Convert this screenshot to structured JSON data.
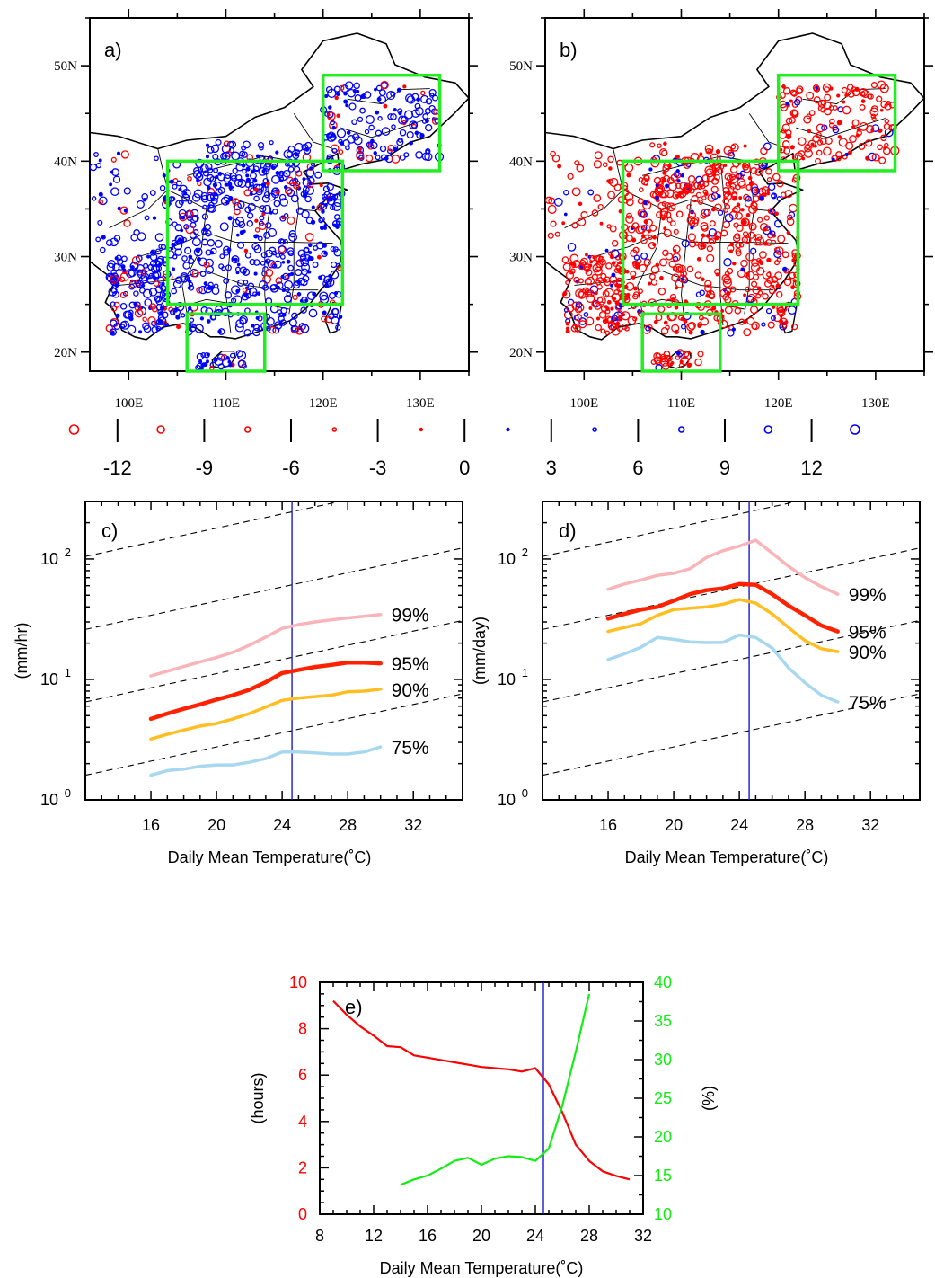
{
  "colors": {
    "negative": "#ff0000",
    "positive": "#0000ff",
    "box": "#22ee22",
    "p99": "#f8b4b8",
    "p95": "#ff2200",
    "p90": "#ffbe22",
    "p75": "#a8d8f0",
    "vline": "#1a1ad0",
    "hours_line": "#ff0000",
    "percent_line": "#11ee11"
  },
  "maps": [
    {
      "tag": "a)",
      "dominant": "positive",
      "lat_ticks": [
        "20N",
        "30N",
        "40N",
        "50N"
      ],
      "lon_ticks": [
        "100E",
        "110E",
        "120E",
        "130E"
      ],
      "lon_range": [
        96,
        135
      ],
      "lat_range": [
        18,
        55
      ]
    },
    {
      "tag": "b)",
      "dominant": "negative",
      "lat_ticks": [
        "20N",
        "30N",
        "40N",
        "50N"
      ],
      "lon_ticks": [
        "100E",
        "110E",
        "120E",
        "130E"
      ],
      "lon_range": [
        96,
        135
      ],
      "lat_range": [
        18,
        55
      ]
    }
  ],
  "colorbar": {
    "labels": [
      "-12",
      "-9",
      "-6",
      "-3",
      "0",
      "3",
      "6",
      "9",
      "12"
    ],
    "markers": [
      {
        "color": "negative",
        "size": 5
      },
      {
        "color": "negative",
        "size": 4
      },
      {
        "color": "negative",
        "size": 3
      },
      {
        "color": "negative",
        "size": 2
      },
      {
        "color": "negative",
        "size": 1.4
      },
      {
        "color": "positive",
        "size": 1.4
      },
      {
        "color": "positive",
        "size": 2
      },
      {
        "color": "positive",
        "size": 3
      },
      {
        "color": "positive",
        "size": 4
      },
      {
        "color": "positive",
        "size": 5
      }
    ]
  },
  "chart_data": [
    {
      "panel": "c)",
      "type": "line",
      "xlabel": "Daily Mean Temperature(˚C)",
      "ylabel": "(mm/hr)",
      "xlim": [
        12,
        35
      ],
      "ylim": [
        1,
        300
      ],
      "yscale": "log",
      "x_ticks": [
        16,
        20,
        24,
        28,
        32
      ],
      "y_ticks": [
        {
          "value": 1,
          "base": "10",
          "exp": "0"
        },
        {
          "value": 10,
          "base": "10",
          "exp": "1"
        },
        {
          "value": 100,
          "base": "10",
          "exp": "2"
        }
      ],
      "vline": 24.6,
      "reference_lines": [
        1.6,
        6.5,
        26,
        105
      ],
      "series": [
        {
          "name": "99%",
          "color": "p99",
          "x": [
            16,
            17,
            18,
            19,
            20,
            21,
            22,
            23,
            24,
            25,
            26,
            27,
            28,
            29,
            30
          ],
          "values": [
            10.7,
            11.7,
            12.8,
            14.0,
            15.2,
            16.8,
            19.2,
            22.5,
            26.5,
            28.5,
            30.0,
            31.2,
            32.4,
            33.4,
            34.6
          ]
        },
        {
          "name": "95%",
          "color": "p95",
          "x": [
            16,
            17,
            18,
            19,
            20,
            21,
            22,
            23,
            24,
            25,
            26,
            27,
            28,
            29,
            30
          ],
          "values": [
            4.7,
            5.2,
            5.7,
            6.2,
            6.8,
            7.4,
            8.2,
            9.5,
            11.3,
            12.0,
            12.7,
            13.2,
            13.8,
            13.8,
            13.6
          ]
        },
        {
          "name": "90%",
          "color": "p90",
          "x": [
            16,
            17,
            18,
            19,
            20,
            21,
            22,
            23,
            24,
            25,
            26,
            27,
            28,
            29,
            30
          ],
          "values": [
            3.2,
            3.5,
            3.8,
            4.1,
            4.3,
            4.7,
            5.2,
            5.9,
            6.7,
            7.0,
            7.2,
            7.4,
            7.9,
            8.0,
            8.3
          ]
        },
        {
          "name": "75%",
          "color": "p75",
          "x": [
            16,
            17,
            18,
            19,
            20,
            21,
            22,
            23,
            24,
            25,
            26,
            27,
            28,
            29,
            30
          ],
          "values": [
            1.6,
            1.75,
            1.8,
            1.9,
            1.95,
            1.95,
            2.05,
            2.2,
            2.5,
            2.5,
            2.45,
            2.4,
            2.4,
            2.5,
            2.75
          ]
        }
      ]
    },
    {
      "panel": "d)",
      "type": "line",
      "xlabel": "Daily Mean Temperature(˚C)",
      "ylabel": "(mm/day)",
      "xlim": [
        12,
        35
      ],
      "ylim": [
        1,
        300
      ],
      "yscale": "log",
      "x_ticks": [
        16,
        20,
        24,
        28,
        32
      ],
      "y_ticks": [
        {
          "value": 1,
          "base": "10",
          "exp": "0"
        },
        {
          "value": 10,
          "base": "10",
          "exp": "1"
        },
        {
          "value": 100,
          "base": "10",
          "exp": "2"
        }
      ],
      "vline": 24.6,
      "reference_lines": [
        1.6,
        6.5,
        26,
        105
      ],
      "series": [
        {
          "name": "99%",
          "color": "p99",
          "x": [
            16,
            17,
            18,
            19,
            20,
            21,
            22,
            23,
            24,
            25,
            26,
            27,
            28,
            29,
            30
          ],
          "values": [
            56,
            62,
            67,
            73,
            76,
            83,
            103,
            117,
            128,
            143,
            112,
            87,
            70,
            59,
            51
          ]
        },
        {
          "name": "95%",
          "color": "p95",
          "x": [
            16,
            17,
            18,
            19,
            20,
            21,
            22,
            23,
            24,
            25,
            26,
            27,
            28,
            29,
            30
          ],
          "values": [
            32,
            35,
            38,
            40,
            45,
            51,
            55,
            57,
            62,
            61,
            51,
            41,
            34,
            28,
            25
          ]
        },
        {
          "name": "90%",
          "color": "p90",
          "x": [
            16,
            17,
            18,
            19,
            20,
            21,
            22,
            23,
            24,
            25,
            26,
            27,
            28,
            29,
            30
          ],
          "values": [
            25,
            27,
            29,
            34,
            38,
            39,
            40,
            42,
            46,
            43,
            35,
            27,
            21,
            18,
            17
          ]
        },
        {
          "name": "75%",
          "color": "p75",
          "x": [
            16,
            17,
            18,
            19,
            20,
            21,
            22,
            23,
            24,
            25,
            26,
            27,
            28,
            29,
            30
          ],
          "values": [
            14.6,
            16.3,
            18.5,
            22.3,
            21.5,
            20.5,
            20.2,
            20.3,
            23.4,
            22.3,
            18.2,
            12.5,
            9.4,
            7.4,
            6.5
          ]
        }
      ]
    },
    {
      "panel": "e)",
      "type": "line",
      "xlabel": "Daily Mean Temperature(˚C)",
      "ylabel": "(hours)",
      "ylabel_right": "(%)",
      "xlim": [
        8,
        32
      ],
      "ylim": [
        0,
        10
      ],
      "ylim_right": [
        10,
        40
      ],
      "x_ticks": [
        8,
        12,
        16,
        20,
        24,
        28,
        32
      ],
      "y_ticks": [
        0,
        2,
        4,
        6,
        8,
        10
      ],
      "y_ticks_right": [
        10,
        15,
        20,
        25,
        30,
        35,
        40
      ],
      "vline": 24.6,
      "series": [
        {
          "name": "hours",
          "axis": "left",
          "color": "hours_line",
          "x": [
            9,
            10,
            11,
            12,
            13,
            14,
            15,
            16,
            17,
            18,
            19,
            20,
            21,
            22,
            23,
            24,
            25,
            26,
            27,
            28,
            29,
            30,
            31
          ],
          "values": [
            9.2,
            8.6,
            8.1,
            7.7,
            7.25,
            7.2,
            6.85,
            6.75,
            6.65,
            6.55,
            6.45,
            6.35,
            6.3,
            6.25,
            6.15,
            6.3,
            5.6,
            4.4,
            3.0,
            2.3,
            1.85,
            1.65,
            1.5
          ]
        },
        {
          "name": "percent",
          "axis": "right",
          "color": "percent_line",
          "x": [
            14,
            15,
            16,
            17,
            18,
            19,
            20,
            21,
            22,
            23,
            24,
            25,
            26,
            27,
            28
          ],
          "values": [
            13.8,
            14.5,
            15.0,
            15.9,
            16.9,
            17.3,
            16.4,
            17.2,
            17.5,
            17.4,
            16.9,
            18.5,
            24,
            31,
            38.5
          ]
        }
      ]
    }
  ]
}
